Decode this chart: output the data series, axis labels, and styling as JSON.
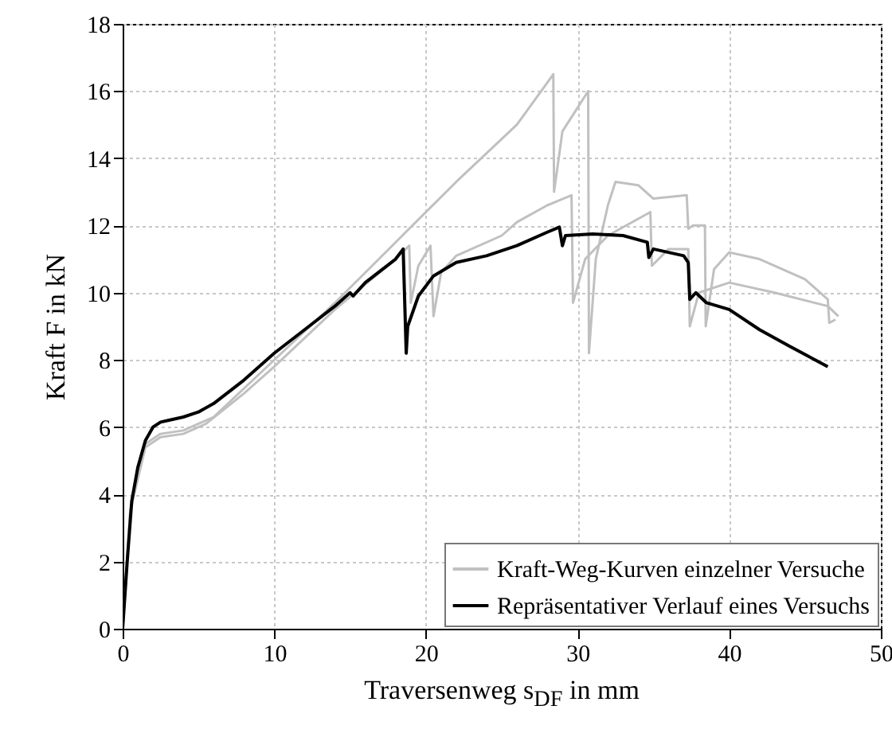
{
  "chart_data": {
    "type": "line",
    "xlabel": "Traversenweg s$_{DF}$ in mm",
    "ylabel": "Kraft F in kN",
    "xlim": [
      0,
      50
    ],
    "xticks": [
      0,
      10,
      20,
      30,
      40,
      50
    ],
    "ylim": [
      0,
      18
    ],
    "yticks": [
      0,
      2,
      4,
      6,
      8,
      10,
      12,
      14,
      16,
      18
    ],
    "grid": true,
    "legend": "bottom right",
    "line_style": "solid",
    "marker": "none",
    "series": [
      {
        "name": "Kraft-Weg-Kurven einzelner Versuche",
        "color": "#c0c0c0",
        "x": [
          0,
          0.5,
          1.5,
          2.5,
          4,
          6,
          10,
          14,
          18,
          22,
          26,
          28.4,
          28.45,
          29,
          30.7,
          30.75,
          31.2,
          32,
          32.5,
          34,
          35,
          37.2,
          37.3,
          37.6,
          38.4,
          38.45,
          39,
          40,
          42,
          45,
          46.5,
          46.6,
          47
        ],
        "values": [
          0,
          3.5,
          5.5,
          5.8,
          5.9,
          6.3,
          8,
          9.7,
          11.5,
          13.3,
          15,
          16.5,
          13,
          14.8,
          16,
          8.2,
          11,
          12.6,
          13.3,
          13.2,
          12.8,
          12.9,
          11.9,
          12,
          12,
          9,
          10.7,
          11.2,
          11,
          10.4,
          9.8,
          9.1,
          9.2
        ]
      },
      {
        "color": "#c0c0c0",
        "x": [
          0,
          0.5,
          1.5,
          2.5,
          4,
          5.5,
          8,
          10,
          14,
          18,
          18.9,
          19,
          19.5,
          20.3,
          20.5,
          21,
          22,
          25,
          26,
          28,
          29.6,
          29.7,
          30.5,
          32,
          34.8,
          34.9,
          36,
          37.3,
          37.4,
          38,
          40,
          43,
          46.5,
          47.2
        ],
        "values": [
          0,
          3.5,
          5.4,
          5.7,
          5.8,
          6.1,
          7,
          7.8,
          9.5,
          11,
          11.4,
          9.7,
          10.8,
          11.4,
          9.3,
          10.6,
          11.1,
          11.7,
          12.1,
          12.6,
          12.9,
          9.7,
          11,
          11.7,
          12.4,
          10.8,
          11.3,
          11.3,
          9,
          10,
          10.3,
          10,
          9.6,
          9.3
        ]
      },
      {
        "name": "Repräsentativer Verlauf eines Versuchs",
        "color": "#000000",
        "x": [
          0,
          0.3,
          0.6,
          1,
          1.5,
          2,
          2.5,
          3,
          4,
          5,
          6,
          8,
          10,
          12,
          14,
          15,
          15.2,
          16,
          18,
          18.5,
          18.7,
          18.8,
          19.5,
          20.5,
          22,
          24,
          26,
          28,
          28.8,
          29,
          29.2,
          31,
          33,
          34.6,
          34.7,
          35,
          37,
          37.3,
          37.4,
          37.8,
          38.5,
          40,
          42,
          44,
          46.5
        ],
        "values": [
          0,
          2,
          3.8,
          4.8,
          5.6,
          6,
          6.15,
          6.2,
          6.3,
          6.45,
          6.7,
          7.4,
          8.2,
          8.9,
          9.6,
          10,
          9.9,
          10.3,
          11,
          11.3,
          8.2,
          9,
          9.9,
          10.5,
          10.9,
          11.1,
          11.4,
          11.8,
          11.95,
          11.4,
          11.7,
          11.75,
          11.7,
          11.5,
          11.05,
          11.3,
          11.1,
          10.9,
          9.8,
          10,
          9.7,
          9.5,
          8.9,
          8.4,
          7.8
        ]
      }
    ]
  }
}
